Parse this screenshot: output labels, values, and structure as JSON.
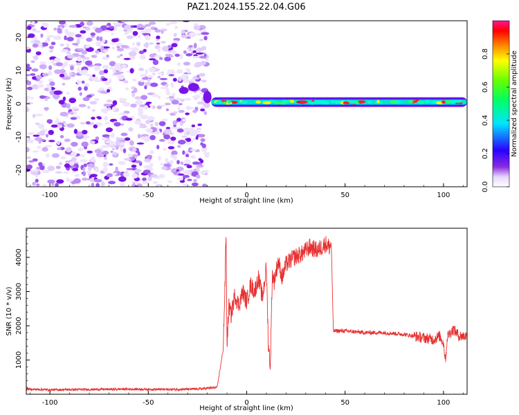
{
  "title": "PAZ1.2024.155.22.04.G06",
  "colors": {
    "snr_line": "#e83030",
    "noise_purple": "#7a14e6",
    "signal_core": "#d01060"
  },
  "chart_data": [
    {
      "type": "heatmap",
      "xlabel": "Height of straight line (km)",
      "ylabel": "Frequency (Hz)",
      "xlim": [
        -112,
        112
      ],
      "ylim": [
        -25,
        25
      ],
      "xticks": [
        -100,
        -50,
        0,
        50,
        100
      ],
      "xtick_labels": [
        "-100",
        "-50",
        "0",
        "50",
        "100"
      ],
      "yticks": [
        -20,
        -10,
        0,
        10,
        20
      ],
      "ytick_labels": [
        "-20",
        "-10",
        "0",
        "10",
        "20"
      ],
      "description_of_content": "",
      "noise_region_x": [
        -112,
        -20
      ],
      "signal_region_x": [
        -18,
        112
      ],
      "signal_frequency_hz": 0.5,
      "colorbar": {
        "label": "Normalized spectral amplitude",
        "range": [
          0.0,
          1.0
        ],
        "ticks": [
          0.0,
          0.2,
          0.4,
          0.6,
          0.8
        ],
        "tick_labels": [
          "0.0",
          "0.2",
          "0.4",
          "0.6",
          "0.8"
        ],
        "colormap": "gist_rainbow_r"
      }
    },
    {
      "type": "line",
      "xlabel": "Height of straight line (km)",
      "ylabel": "SNR (10 * v/v)",
      "xlim": [
        -112,
        112
      ],
      "ylim": [
        0,
        4850
      ],
      "xticks": [
        -100,
        -50,
        0,
        50,
        100
      ],
      "xtick_labels": [
        "-100",
        "-50",
        "0",
        "50",
        "100"
      ],
      "yticks": [
        1000,
        2000,
        3000,
        4000
      ],
      "ytick_labels": [
        "1000",
        "2000",
        "3000",
        "4000"
      ],
      "series": [
        {
          "x": [
            -112,
            -100,
            -80,
            -60,
            -40,
            -25,
            -15,
            -12,
            -11,
            -10.5,
            -10,
            -9,
            -8,
            -6,
            -4,
            -2,
            0,
            2,
            4,
            6,
            8,
            10,
            11,
            12,
            13,
            14,
            16,
            18,
            20,
            24,
            28,
            32,
            36,
            40,
            42,
            43,
            44,
            50,
            60,
            70,
            80,
            85,
            90,
            95,
            98,
            100,
            101,
            102,
            105,
            108,
            112
          ],
          "y": [
            150,
            130,
            140,
            150,
            140,
            150,
            200,
            1300,
            3200,
            4850,
            1500,
            2600,
            2300,
            2900,
            2600,
            3000,
            2700,
            3200,
            3000,
            3400,
            2800,
            3700,
            1500,
            820,
            3500,
            3300,
            3900,
            3400,
            3800,
            4000,
            4100,
            4300,
            4200,
            4400,
            4300,
            4400,
            1850,
            1850,
            1800,
            1800,
            1750,
            1700,
            1650,
            1600,
            1700,
            1500,
            1000,
            1700,
            1900,
            1700,
            1700
          ]
        }
      ]
    }
  ]
}
